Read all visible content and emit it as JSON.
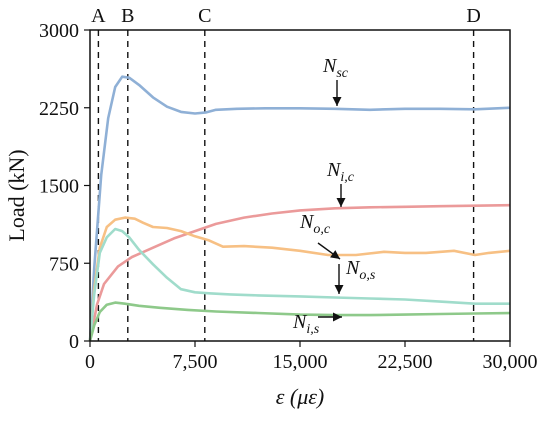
{
  "chart_data": {
    "type": "line",
    "xlabel": "ε (με)",
    "ylabel": "Load (kN)",
    "xlim": [
      0,
      30000
    ],
    "ylim": [
      0,
      3000
    ],
    "x_ticks": [
      0,
      7500,
      15000,
      22500,
      30000
    ],
    "x_tick_labels": [
      "0",
      "7,500",
      "15,000",
      "22,500",
      "30,000"
    ],
    "y_ticks": [
      0,
      750,
      1500,
      2250,
      3000
    ],
    "y_tick_labels": [
      "0",
      "750",
      "1500",
      "2250",
      "3000"
    ],
    "grid": false,
    "markers": [
      {
        "label": "A",
        "x": 600
      },
      {
        "label": "B",
        "x": 2700
      },
      {
        "label": "C",
        "x": 8200
      },
      {
        "label": "D",
        "x": 27400
      }
    ],
    "series": [
      {
        "name": "N_sc",
        "label_main": "N",
        "label_sub": "sc",
        "color": "#8fb0d6",
        "x": [
          0,
          300,
          800,
          1300,
          1800,
          2300,
          2800,
          3500,
          4500,
          5500,
          6500,
          7500,
          8300,
          9000,
          10500,
          12500,
          15000,
          17500,
          20000,
          22500,
          25000,
          27500,
          30000
        ],
        "y": [
          0,
          700,
          1600,
          2150,
          2450,
          2550,
          2540,
          2470,
          2350,
          2260,
          2210,
          2195,
          2205,
          2230,
          2240,
          2245,
          2245,
          2240,
          2230,
          2240,
          2240,
          2235,
          2250
        ]
      },
      {
        "name": "N_i,c",
        "label_main": "N",
        "label_sub": "i,c",
        "color": "#eb9a9a",
        "x": [
          0,
          500,
          1000,
          2000,
          3000,
          4500,
          6000,
          7500,
          9000,
          11000,
          13000,
          15000,
          17500,
          20000,
          22500,
          25000,
          27500,
          30000
        ],
        "y": [
          0,
          350,
          550,
          720,
          810,
          900,
          990,
          1060,
          1130,
          1190,
          1230,
          1260,
          1280,
          1290,
          1295,
          1300,
          1305,
          1310
        ]
      },
      {
        "name": "N_o,c",
        "label_main": "N",
        "label_sub": "o,c",
        "color": "#f7c084",
        "x": [
          0,
          300,
          700,
          1200,
          1800,
          2500,
          3200,
          3800,
          4500,
          5500,
          6500,
          7500,
          8500,
          9500,
          11000,
          13000,
          15000,
          17000,
          19000,
          21000,
          22500,
          24000,
          26000,
          27500,
          28500,
          30000
        ],
        "y": [
          0,
          500,
          900,
          1100,
          1170,
          1190,
          1180,
          1140,
          1100,
          1090,
          1060,
          1010,
          970,
          910,
          915,
          900,
          870,
          830,
          830,
          860,
          850,
          850,
          870,
          830,
          850,
          870
        ]
      },
      {
        "name": "N_o,s",
        "label_main": "N",
        "label_sub": "o,s",
        "color": "#a0dccb",
        "x": [
          0,
          300,
          700,
          1200,
          1800,
          2300,
          2800,
          3500,
          4500,
          5500,
          6500,
          7500,
          8500,
          10000,
          12000,
          15000,
          17500,
          20000,
          22500,
          25000,
          27500,
          30000
        ],
        "y": [
          0,
          450,
          850,
          1000,
          1080,
          1060,
          1000,
          880,
          740,
          610,
          500,
          470,
          460,
          450,
          440,
          430,
          420,
          410,
          400,
          380,
          360,
          360
        ]
      },
      {
        "name": "N_i,s",
        "label_main": "N",
        "label_sub": "i,s",
        "color": "#8ec98a",
        "x": [
          0,
          300,
          700,
          1200,
          1800,
          2500,
          3500,
          5000,
          7000,
          9000,
          12000,
          15000,
          17500,
          20000,
          22500,
          25000,
          27500,
          30000
        ],
        "y": [
          0,
          150,
          280,
          350,
          370,
          360,
          340,
          320,
          300,
          285,
          270,
          255,
          250,
          250,
          255,
          260,
          265,
          270
        ]
      }
    ]
  }
}
